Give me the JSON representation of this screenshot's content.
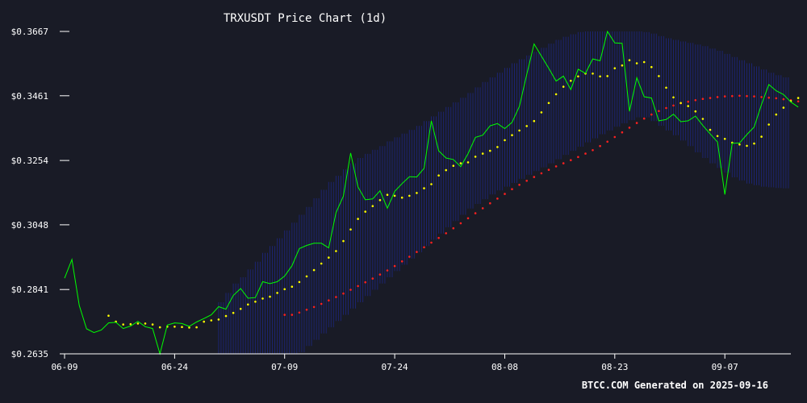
{
  "chart_data": {
    "type": "line",
    "title": "TRXUSDT Price Chart (1d)",
    "footer": "BTCC.COM Generated on 2025-09-16",
    "xlabel": "",
    "ylabel": "",
    "x_ticks": [
      "06-09",
      "06-24",
      "07-09",
      "07-24",
      "08-08",
      "08-23",
      "09-07"
    ],
    "y_ticks": [
      "$0.2635",
      "$0.2841",
      "$0.3048",
      "$0.3254",
      "$0.3461",
      "$0.3667"
    ],
    "ylim": [
      0.2635,
      0.3667
    ],
    "x_range": [
      "2025-06-09",
      "2025-09-16"
    ],
    "grid": false,
    "colors": {
      "background": "#191b26",
      "price": "#00ff00",
      "ma_short": "#ffff00",
      "ma_long": "#ff2020",
      "band": "#1c2470",
      "axis": "#ffffff"
    },
    "series": [
      {
        "key": "price",
        "style": "line",
        "start": "2025-06-09",
        "values": [
          0.2877,
          0.2937,
          0.279,
          0.2715,
          0.2703,
          0.2711,
          0.2734,
          0.2736,
          0.2716,
          0.2724,
          0.2739,
          0.2722,
          0.2716,
          0.2635,
          0.2727,
          0.2734,
          0.2732,
          0.2723,
          0.2737,
          0.2748,
          0.276,
          0.2786,
          0.2778,
          0.2822,
          0.2844,
          0.2813,
          0.2815,
          0.2866,
          0.286,
          0.2866,
          0.2884,
          0.2917,
          0.2972,
          0.2982,
          0.2989,
          0.2989,
          0.2974,
          0.3087,
          0.314,
          0.3278,
          0.3169,
          0.3128,
          0.3131,
          0.3157,
          0.3101,
          0.3155,
          0.318,
          0.3202,
          0.3201,
          0.3229,
          0.3381,
          0.3285,
          0.3262,
          0.3257,
          0.3234,
          0.3276,
          0.3328,
          0.3335,
          0.3365,
          0.3372,
          0.3356,
          0.3376,
          0.3427,
          0.3529,
          0.3627,
          0.3588,
          0.3549,
          0.3508,
          0.3524,
          0.3481,
          0.3546,
          0.3533,
          0.3579,
          0.3573,
          0.3667,
          0.363,
          0.3629,
          0.3411,
          0.3519,
          0.3458,
          0.3454,
          0.3381,
          0.3385,
          0.3402,
          0.3378,
          0.3381,
          0.3396,
          0.3366,
          0.3339,
          0.3313,
          0.3145,
          0.3309,
          0.331,
          0.3337,
          0.3361,
          0.3433,
          0.3497,
          0.3477,
          0.3465,
          0.3441,
          0.3425
        ]
      },
      {
        "key": "ma_short",
        "style": "dots",
        "start": "2025-06-15",
        "values": [
          0.2757,
          0.2738,
          0.2729,
          0.273,
          0.2732,
          0.2732,
          0.2729,
          0.272,
          0.2722,
          0.2722,
          0.2721,
          0.2719,
          0.272,
          0.2738,
          0.2742,
          0.2745,
          0.2756,
          0.2766,
          0.2779,
          0.2793,
          0.2802,
          0.2812,
          0.2818,
          0.283,
          0.2842,
          0.285,
          0.2865,
          0.2883,
          0.2903,
          0.2924,
          0.2943,
          0.2964,
          0.2996,
          0.3033,
          0.3067,
          0.309,
          0.3108,
          0.3127,
          0.3144,
          0.3141,
          0.3135,
          0.3141,
          0.315,
          0.3165,
          0.3178,
          0.3206,
          0.3223,
          0.3237,
          0.3245,
          0.3248,
          0.3266,
          0.3276,
          0.3285,
          0.3297,
          0.3319,
          0.3335,
          0.335,
          0.3364,
          0.338,
          0.3408,
          0.3438,
          0.3466,
          0.349,
          0.3509,
          0.3523,
          0.3532,
          0.3532,
          0.3523,
          0.3524,
          0.3549,
          0.3558,
          0.3575,
          0.3565,
          0.3569,
          0.3553,
          0.3524,
          0.3487,
          0.3456,
          0.3438,
          0.3428,
          0.3411,
          0.3387,
          0.3352,
          0.3332,
          0.3323,
          0.3311,
          0.3305,
          0.3301,
          0.3308,
          0.333,
          0.3369,
          0.3401,
          0.3423,
          0.3444,
          0.3454
        ]
      },
      {
        "key": "ma_long",
        "style": "dots",
        "start": "2025-07-09",
        "values": [
          0.276,
          0.276,
          0.2767,
          0.2776,
          0.2785,
          0.2795,
          0.2806,
          0.2817,
          0.2828,
          0.284,
          0.2852,
          0.2864,
          0.2876,
          0.2889,
          0.2902,
          0.2916,
          0.2931,
          0.2946,
          0.2961,
          0.2976,
          0.2991,
          0.3006,
          0.3021,
          0.3037,
          0.3053,
          0.3069,
          0.3085,
          0.3101,
          0.3117,
          0.3132,
          0.3147,
          0.3162,
          0.3176,
          0.3189,
          0.3201,
          0.3213,
          0.3224,
          0.3235,
          0.3245,
          0.3255,
          0.3265,
          0.3276,
          0.3287,
          0.33,
          0.3314,
          0.3329,
          0.3344,
          0.3359,
          0.3374,
          0.3388,
          0.3401,
          0.3412,
          0.3422,
          0.343,
          0.3437,
          0.3442,
          0.3447,
          0.3451,
          0.3454,
          0.3457,
          0.3459,
          0.346,
          0.3461,
          0.346,
          0.3459,
          0.3457,
          0.3455,
          0.3453,
          0.345,
          0.3447,
          0.3443
        ]
      },
      {
        "key": "band_upper",
        "style": "band",
        "start": "2025-06-29",
        "values": [
          0.2635,
          0.28,
          0.283,
          0.286,
          0.288,
          0.2905,
          0.293,
          0.2958,
          0.298,
          0.3005,
          0.303,
          0.3055,
          0.308,
          0.3105,
          0.3133,
          0.316,
          0.3185,
          0.3205,
          0.3225,
          0.3245,
          0.3262,
          0.3275,
          0.3288,
          0.33,
          0.3315,
          0.3328,
          0.334,
          0.3352,
          0.3365,
          0.338,
          0.3395,
          0.341,
          0.3425,
          0.344,
          0.3455,
          0.347,
          0.3488,
          0.3505,
          0.352,
          0.3535,
          0.355,
          0.3565,
          0.3578,
          0.359,
          0.3602,
          0.3615,
          0.3628,
          0.364,
          0.365,
          0.3658,
          0.3665,
          0.3667,
          0.3667,
          0.3667,
          0.3667,
          0.3667,
          0.3667,
          0.3667,
          0.3667,
          0.3665,
          0.366,
          0.3652,
          0.3645,
          0.364,
          0.3635,
          0.363,
          0.3625,
          0.362,
          0.3612,
          0.3605,
          0.3595,
          0.3585,
          0.3575,
          0.3565,
          0.3555,
          0.3545,
          0.3535,
          0.3527,
          0.352
        ]
      },
      {
        "key": "band_lower",
        "style": "band",
        "start": "2025-06-29",
        "values": [
          0.2635,
          0.2635,
          0.2635,
          0.2635,
          0.2635,
          0.2635,
          0.2635,
          0.2635,
          0.2635,
          0.2635,
          0.2635,
          0.2635,
          0.264,
          0.266,
          0.268,
          0.27,
          0.272,
          0.274,
          0.276,
          0.278,
          0.28,
          0.282,
          0.284,
          0.286,
          0.288,
          0.29,
          0.292,
          0.294,
          0.296,
          0.298,
          0.3,
          0.302,
          0.304,
          0.306,
          0.308,
          0.31,
          0.3115,
          0.313,
          0.3145,
          0.3158,
          0.317,
          0.3182,
          0.3195,
          0.3208,
          0.322,
          0.3232,
          0.3245,
          0.3258,
          0.3272,
          0.3285,
          0.3298,
          0.3312,
          0.3325,
          0.3338,
          0.335,
          0.3362,
          0.3373,
          0.3383,
          0.3392,
          0.3392,
          0.338,
          0.3365,
          0.335,
          0.3335,
          0.3318,
          0.33,
          0.328,
          0.3262,
          0.3245,
          0.323,
          0.3215,
          0.32,
          0.319,
          0.318,
          0.3175,
          0.317,
          0.3168,
          0.3166,
          0.3165
        ]
      }
    ]
  }
}
